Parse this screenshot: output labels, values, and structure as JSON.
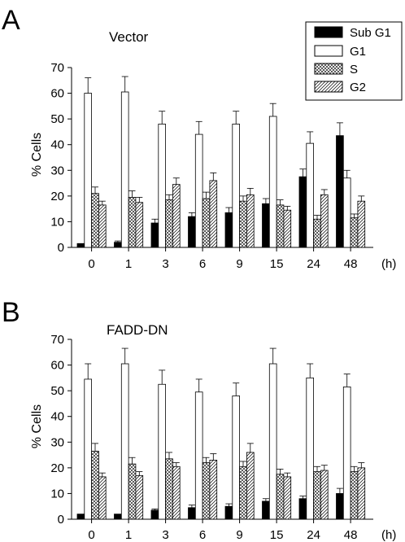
{
  "legend": {
    "items": [
      {
        "label": "Sub G1",
        "pattern": "solid"
      },
      {
        "label": "G1",
        "pattern": "open"
      },
      {
        "label": "S",
        "pattern": "crosshatch"
      },
      {
        "label": "G2",
        "pattern": "diagonal"
      }
    ]
  },
  "chart_data": [
    {
      "type": "bar",
      "panel_label": "A",
      "title": "Vector",
      "ylabel": "% Cells",
      "x_unit": "(h)",
      "categories": [
        "0",
        "1",
        "3",
        "6",
        "9",
        "15",
        "24",
        "48"
      ],
      "ylim": [
        0,
        70
      ],
      "yticks": [
        "0",
        "10",
        "20",
        "30",
        "40",
        "50",
        "60",
        "70"
      ],
      "series": [
        {
          "name": "Sub G1",
          "values": [
            1.5,
            2,
            9.5,
            12,
            13.5,
            17,
            27.5,
            43.5
          ],
          "errors": [
            0,
            0.5,
            1.5,
            1.5,
            2,
            2,
            3,
            5
          ]
        },
        {
          "name": "G1",
          "values": [
            60,
            60.5,
            48,
            44,
            48,
            51,
            40.5,
            27
          ],
          "errors": [
            6,
            6,
            5,
            5,
            5,
            5,
            4.5,
            3
          ]
        },
        {
          "name": "S",
          "values": [
            21,
            19.5,
            18.5,
            19,
            18,
            16.5,
            11,
            11.5
          ],
          "errors": [
            2.5,
            2.5,
            2,
            2.5,
            2,
            2,
            1.5,
            1.5
          ]
        },
        {
          "name": "G2",
          "values": [
            16.5,
            17.5,
            24.5,
            26,
            20.5,
            14.5,
            20.5,
            18
          ],
          "errors": [
            1.5,
            2,
            2.5,
            3,
            2.5,
            1.5,
            2,
            2
          ]
        }
      ]
    },
    {
      "type": "bar",
      "panel_label": "B",
      "title": "FADD-DN",
      "ylabel": "% Cells",
      "x_unit": "(h)",
      "categories": [
        "0",
        "1",
        "3",
        "6",
        "9",
        "15",
        "24",
        "48"
      ],
      "ylim": [
        0,
        70
      ],
      "yticks": [
        "0",
        "10",
        "20",
        "30",
        "40",
        "50",
        "60",
        "70"
      ],
      "series": [
        {
          "name": "Sub G1",
          "values": [
            2,
            2,
            3.5,
            4.5,
            5,
            7,
            8,
            10
          ],
          "errors": [
            0,
            0,
            0.5,
            1,
            1,
            1,
            1,
            2
          ]
        },
        {
          "name": "G1",
          "values": [
            54.5,
            60.5,
            52.5,
            49.5,
            48,
            60.5,
            55,
            51.5
          ],
          "errors": [
            6,
            6,
            5.5,
            5,
            5,
            6,
            5.5,
            5
          ]
        },
        {
          "name": "S",
          "values": [
            26.5,
            21.5,
            23.5,
            22,
            20.5,
            17.5,
            18.5,
            18.5
          ],
          "errors": [
            3,
            2.5,
            2.5,
            2,
            2,
            2,
            2,
            2
          ]
        },
        {
          "name": "G2",
          "values": [
            16.5,
            17,
            20.5,
            23,
            26,
            16.5,
            19,
            20
          ],
          "errors": [
            1.5,
            1.5,
            1.5,
            2.5,
            3.5,
            1.5,
            2,
            2
          ]
        }
      ]
    }
  ]
}
